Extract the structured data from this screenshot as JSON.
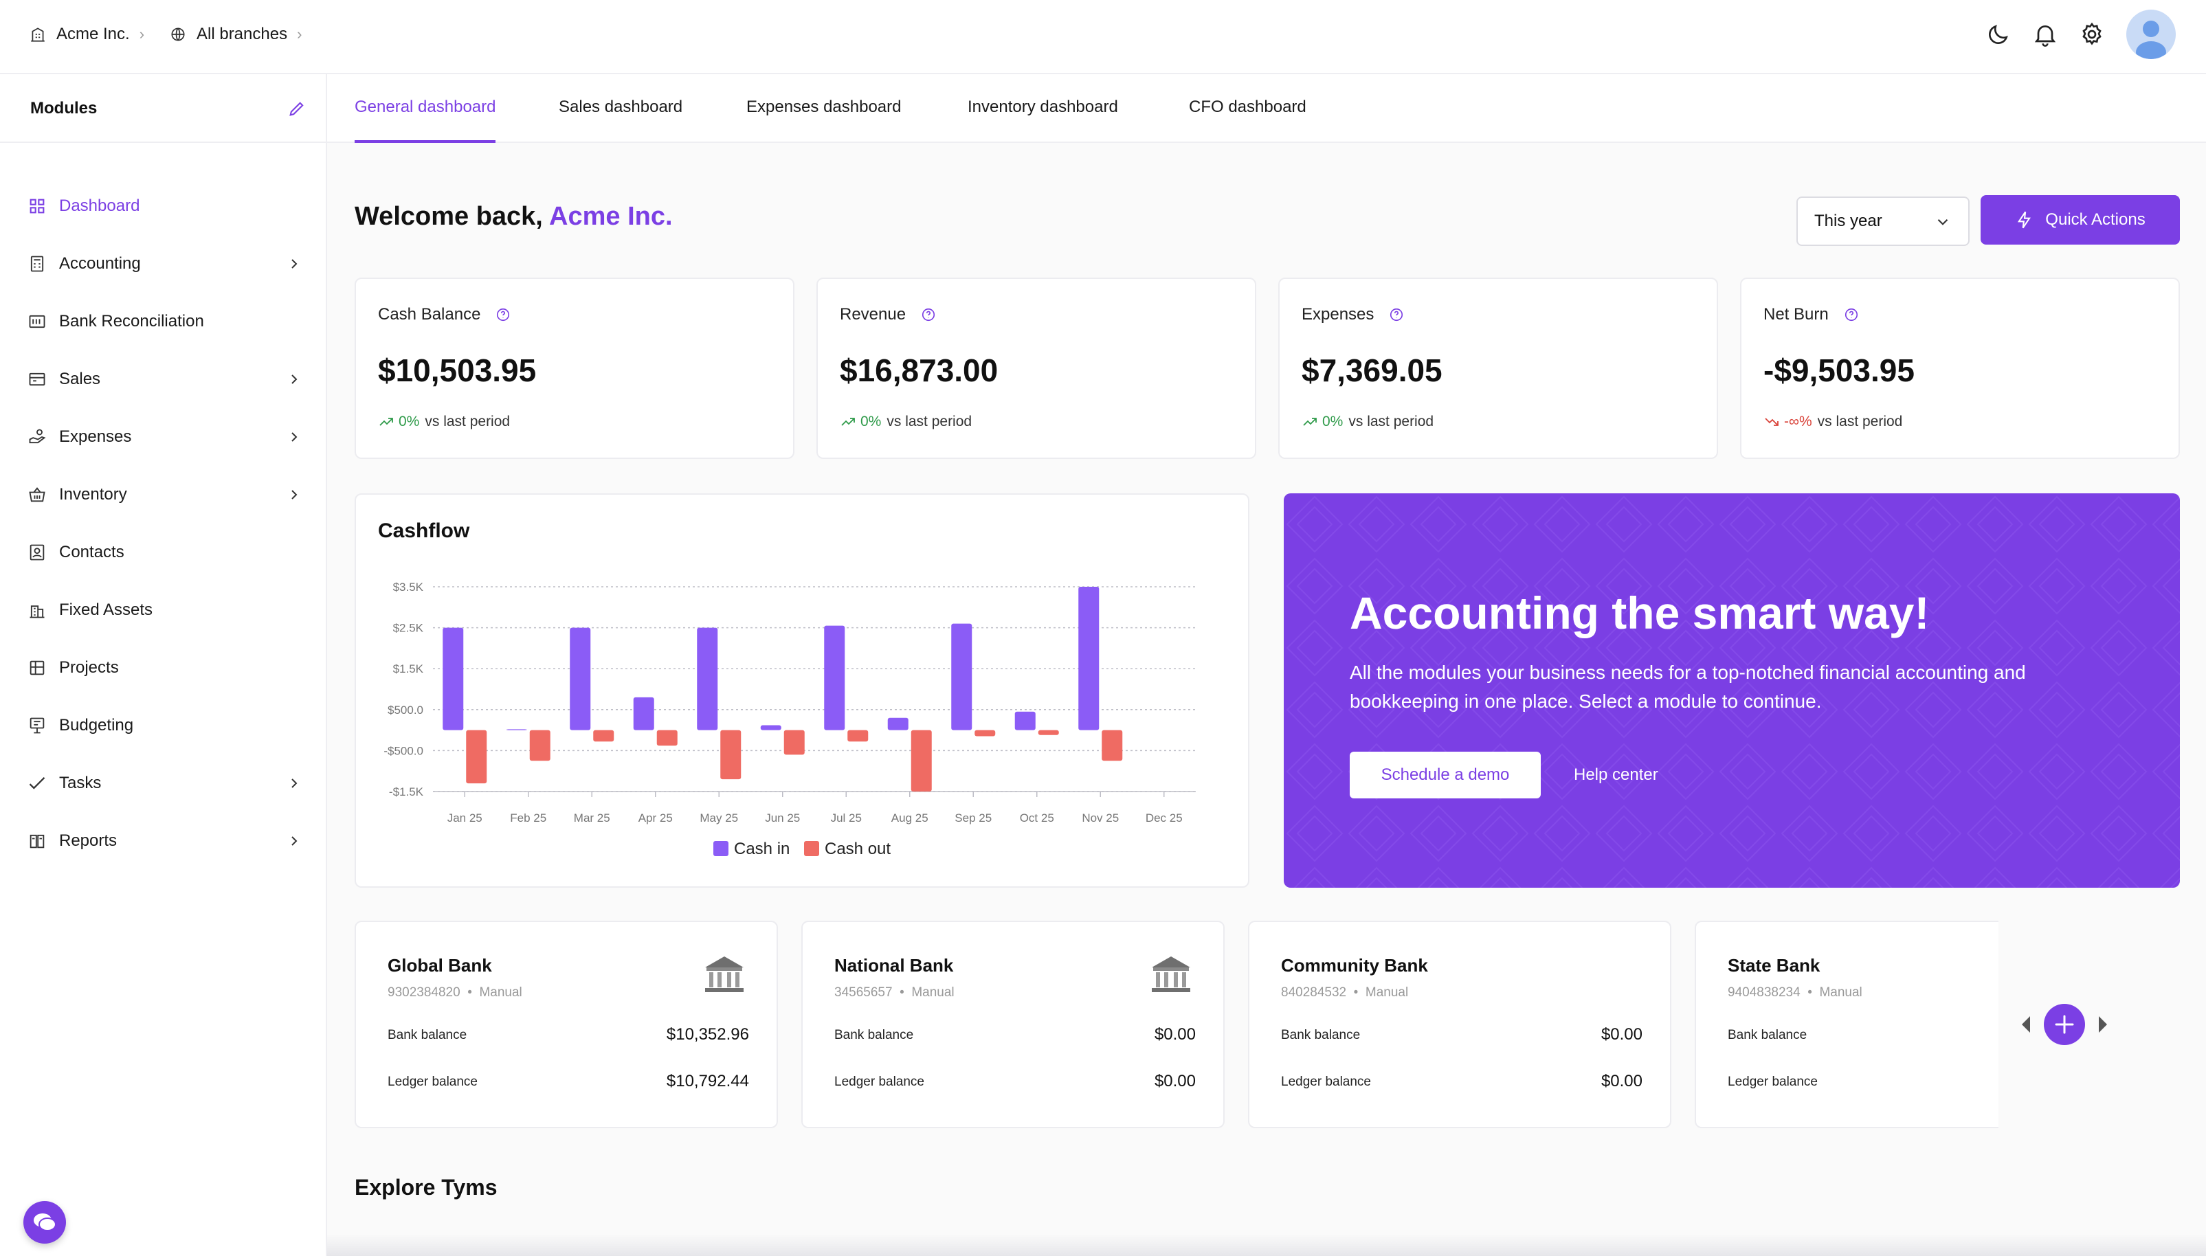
{
  "topbar": {
    "company": "Acme Inc.",
    "branch": "All branches",
    "icons": [
      "building-icon",
      "globe-icon",
      "moon-icon",
      "bell-icon",
      "gear-icon",
      "avatar"
    ]
  },
  "sidebar": {
    "title": "Modules",
    "items": [
      {
        "label": "Dashboard",
        "icon": "grid-icon",
        "active": true,
        "has_children": false
      },
      {
        "label": "Accounting",
        "icon": "calculator-icon",
        "active": false,
        "has_children": true
      },
      {
        "label": "Bank Reconciliation",
        "icon": "bank-icon",
        "active": false,
        "has_children": false
      },
      {
        "label": "Sales",
        "icon": "receipt-icon",
        "active": false,
        "has_children": true
      },
      {
        "label": "Expenses",
        "icon": "hand-coins-icon",
        "active": false,
        "has_children": true
      },
      {
        "label": "Inventory",
        "icon": "basket-icon",
        "active": false,
        "has_children": true
      },
      {
        "label": "Contacts",
        "icon": "contacts-icon",
        "active": false,
        "has_children": false
      },
      {
        "label": "Fixed Assets",
        "icon": "building-icon",
        "active": false,
        "has_children": false
      },
      {
        "label": "Projects",
        "icon": "projects-icon",
        "active": false,
        "has_children": false
      },
      {
        "label": "Budgeting",
        "icon": "budget-icon",
        "active": false,
        "has_children": false
      },
      {
        "label": "Tasks",
        "icon": "check-icon",
        "active": false,
        "has_children": true
      },
      {
        "label": "Reports",
        "icon": "book-icon",
        "active": false,
        "has_children": true
      }
    ]
  },
  "tabs": [
    {
      "label": "General dashboard",
      "active": true
    },
    {
      "label": "Sales dashboard",
      "active": false
    },
    {
      "label": "Expenses dashboard",
      "active": false
    },
    {
      "label": "Inventory dashboard",
      "active": false
    },
    {
      "label": "CFO dashboard",
      "active": false
    }
  ],
  "welcome": {
    "prefix": "Welcome back, ",
    "company": "Acme Inc."
  },
  "period_select": {
    "value": "This year"
  },
  "quick_actions": {
    "label": "Quick Actions"
  },
  "kpis": [
    {
      "label": "Cash Balance",
      "value": "$10,503.95",
      "change": "0%",
      "trend": "up",
      "suffix": "vs last period"
    },
    {
      "label": "Revenue",
      "value": "$16,873.00",
      "change": "0%",
      "trend": "up",
      "suffix": "vs last period"
    },
    {
      "label": "Expenses",
      "value": "$7,369.05",
      "change": "0%",
      "trend": "up",
      "suffix": "vs last period"
    },
    {
      "label": "Net Burn",
      "value": "-$9,503.95",
      "change": "-∞%",
      "trend": "down",
      "suffix": "vs last period"
    }
  ],
  "chart_data": {
    "type": "bar",
    "title": "Cashflow",
    "categories": [
      "Jan 25",
      "Feb 25",
      "Mar 25",
      "Apr 25",
      "May 25",
      "Jun 25",
      "Jul 25",
      "Aug 25",
      "Sep 25",
      "Oct 25",
      "Nov 25",
      "Dec 25"
    ],
    "series": [
      {
        "name": "Cash in",
        "color": "#8b5cf6",
        "values": [
          2500,
          20,
          2500,
          800,
          2500,
          120,
          2550,
          300,
          2600,
          450,
          3500,
          0
        ]
      },
      {
        "name": "Cash out",
        "color": "#ef6b63",
        "values": [
          -1300,
          -750,
          -280,
          -380,
          -1200,
          -600,
          -280,
          -1500,
          -150,
          -120,
          -750,
          0
        ]
      }
    ],
    "yticks": [
      3500,
      2500,
      1500,
      500,
      -500,
      -1500
    ],
    "ytick_labels": [
      "$3.5K",
      "$2.5K",
      "$1.5K",
      "$500.0",
      "-$500.0",
      "-$1.5K"
    ],
    "ylim": [
      -1500,
      3500
    ],
    "grid": true,
    "legend": "bottom"
  },
  "promo": {
    "title": "Accounting the smart way!",
    "body": "All the modules your business needs for a top-notched financial accounting and bookkeeping in one place. Select a module to continue.",
    "primary": "Schedule a demo",
    "secondary": "Help center"
  },
  "banks": [
    {
      "name": "Global Bank",
      "account": "9302384820",
      "type": "Manual",
      "bank_label": "Bank balance",
      "bank_value": "$10,352.96",
      "ledger_label": "Ledger balance",
      "ledger_value": "$10,792.44",
      "icon": "bank-building-icon"
    },
    {
      "name": "National Bank",
      "account": "34565657",
      "type": "Manual",
      "bank_label": "Bank balance",
      "bank_value": "$0.00",
      "ledger_label": "Ledger balance",
      "ledger_value": "$0.00",
      "icon": "bank-building-icon"
    },
    {
      "name": "Community Bank",
      "account": "840284532",
      "type": "Manual",
      "bank_label": "Bank balance",
      "bank_value": "$0.00",
      "ledger_label": "Ledger balance",
      "ledger_value": "$0.00",
      "icon": ""
    },
    {
      "name": "State Bank",
      "account": "9404838234",
      "type": "Manual",
      "bank_label": "Bank balance",
      "bank_value": "",
      "ledger_label": "Ledger balance",
      "ledger_value": "",
      "icon": ""
    }
  ],
  "explore": {
    "title": "Explore Tyms"
  },
  "colors": {
    "accent": "#7b3fe4",
    "cash_in": "#8b5cf6",
    "cash_out": "#ef6b63",
    "up": "#2e9a49",
    "down": "#d9433a"
  }
}
